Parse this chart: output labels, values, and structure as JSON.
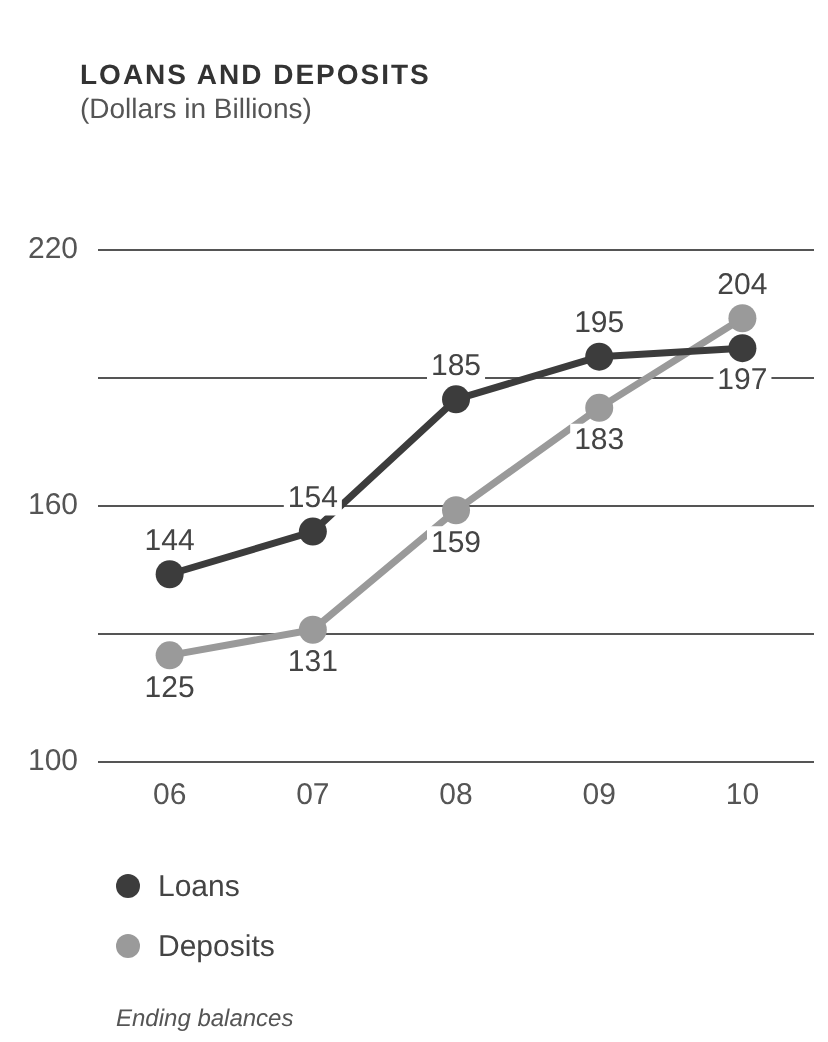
{
  "chart_data": {
    "type": "line",
    "title": "LOANS AND DEPOSITS",
    "subtitle": "(Dollars in Billions)",
    "categories": [
      "06",
      "07",
      "08",
      "09",
      "10"
    ],
    "series": [
      {
        "name": "Loans",
        "color": "#3c3c3c",
        "values": [
          144,
          154,
          185,
          195,
          197
        ]
      },
      {
        "name": "Deposits",
        "color": "#9a9a9a",
        "values": [
          125,
          131,
          159,
          183,
          204
        ]
      }
    ],
    "ylim": [
      100,
      220
    ],
    "yticks": [
      100,
      {
        "value": 130,
        "label": null
      },
      160,
      {
        "value": 190,
        "label": null
      },
      220
    ],
    "grid": "y",
    "legend": "bottom",
    "marker": "circle",
    "line_style": "solid",
    "data_labels": true,
    "annotations": [
      "Ending balances"
    ]
  }
}
